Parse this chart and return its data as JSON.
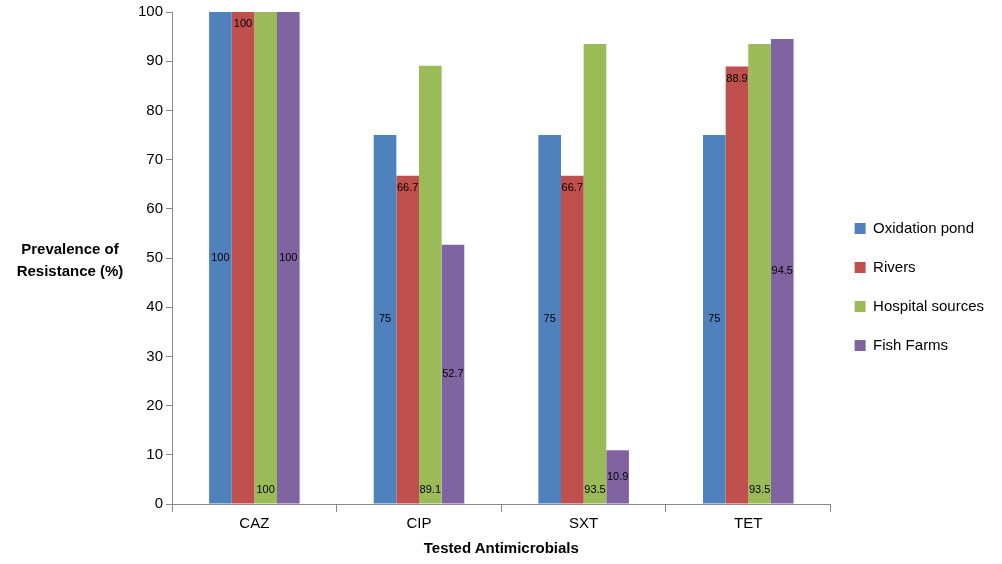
{
  "chart_data": {
    "type": "bar",
    "xlabel": "Tested Antimicrobials",
    "ylabel": "Prevalence of Resistance (%)",
    "categories": [
      "CAZ",
      "CIP",
      "SXT",
      "TET"
    ],
    "series": [
      {
        "name": "Oxidation pond",
        "color": "#4f81bd",
        "values": [
          100,
          75,
          75,
          75
        ]
      },
      {
        "name": "Rivers",
        "color": "#c0504d",
        "values": [
          100,
          66.7,
          66.7,
          88.9
        ]
      },
      {
        "name": "Hospital sources",
        "color": "#9bbb59",
        "values": [
          100,
          89.1,
          93.5,
          93.5
        ]
      },
      {
        "name": "Fish Farms",
        "color": "#8064a2",
        "values": [
          100,
          52.7,
          10.9,
          94.5
        ]
      }
    ],
    "ylim": [
      0,
      100
    ],
    "yticks": [
      0,
      10,
      20,
      30,
      40,
      50,
      60,
      70,
      80,
      90,
      100
    ],
    "grid": false,
    "legend": "right",
    "data_labels": true
  }
}
